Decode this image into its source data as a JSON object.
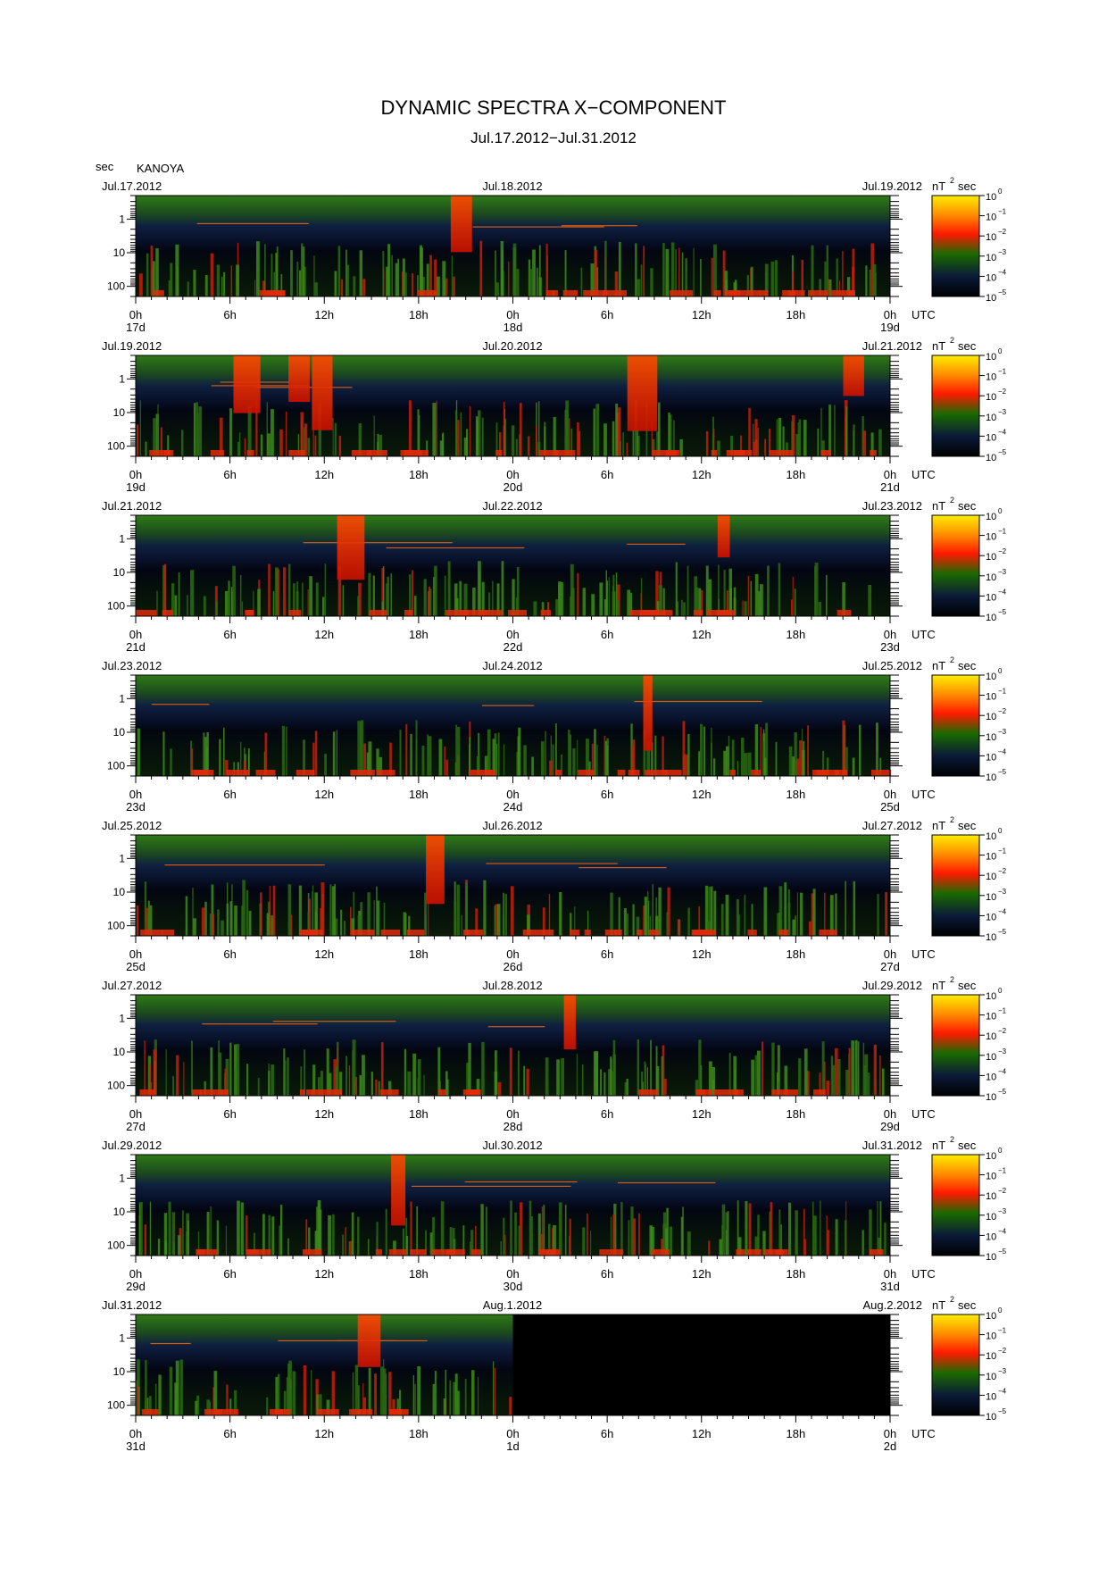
{
  "title": "DYNAMIC SPECTRA X−COMPONENT",
  "subtitle": "Jul.17.2012−Jul.31.2012",
  "y_unit_label": "sec",
  "station": "KANOYA",
  "colorbar": {
    "unit_base": "nT",
    "unit_exp": "2",
    "unit_suffix": "sec",
    "tick_labels": [
      {
        "base": "10",
        "exp": "0"
      },
      {
        "base": "10",
        "exp": "−1"
      },
      {
        "base": "10",
        "exp": "−2"
      },
      {
        "base": "10",
        "exp": "−3"
      },
      {
        "base": "10",
        "exp": "−4"
      },
      {
        "base": "10",
        "exp": "−5"
      }
    ],
    "colors": [
      "#ffee00",
      "#ff8800",
      "#ff1a00",
      "#1a6a00",
      "#0b1a38",
      "#000000"
    ]
  },
  "chart_data": {
    "type": "heatmap",
    "panel_count": 8,
    "y_scale": "log",
    "y_range_sec": [
      0.2,
      200
    ],
    "y_tick_labels": [
      "1",
      "10",
      "100"
    ],
    "x_tick_labels": [
      "0h",
      "6h",
      "12h",
      "18h",
      "0h",
      "6h",
      "12h",
      "18h",
      "0h"
    ],
    "utc_label": "UTC",
    "value_range": [
      "10^-5",
      "10^0"
    ],
    "panels": [
      {
        "date_left": "Jul.17.2012",
        "date_mid": "Jul.18.2012",
        "date_right": "Jul.19.2012",
        "days": [
          "17d",
          "18d",
          "19d"
        ],
        "data_fraction": 1.0
      },
      {
        "date_left": "Jul.19.2012",
        "date_mid": "Jul.20.2012",
        "date_right": "Jul.21.2012",
        "days": [
          "19d",
          "20d",
          "21d"
        ],
        "data_fraction": 1.0
      },
      {
        "date_left": "Jul.21.2012",
        "date_mid": "Jul.22.2012",
        "date_right": "Jul.23.2012",
        "days": [
          "21d",
          "22d",
          "23d"
        ],
        "data_fraction": 1.0
      },
      {
        "date_left": "Jul.23.2012",
        "date_mid": "Jul.24.2012",
        "date_right": "Jul.25.2012",
        "days": [
          "23d",
          "24d",
          "25d"
        ],
        "data_fraction": 1.0
      },
      {
        "date_left": "Jul.25.2012",
        "date_mid": "Jul.26.2012",
        "date_right": "Jul.27.2012",
        "days": [
          "25d",
          "26d",
          "27d"
        ],
        "data_fraction": 1.0
      },
      {
        "date_left": "Jul.27.2012",
        "date_mid": "Jul.28.2012",
        "date_right": "Jul.29.2012",
        "days": [
          "27d",
          "28d",
          "29d"
        ],
        "data_fraction": 1.0
      },
      {
        "date_left": "Jul.29.2012",
        "date_mid": "Jul.30.2012",
        "date_right": "Jul.31.2012",
        "days": [
          "29d",
          "30d",
          "31d"
        ],
        "data_fraction": 1.0
      },
      {
        "date_left": "Jul.31.2012",
        "date_mid": "Aug.1.2012",
        "date_right": "Aug.2.2012",
        "days": [
          "31d",
          "1d",
          "2d"
        ],
        "data_fraction": 0.5
      }
    ]
  }
}
